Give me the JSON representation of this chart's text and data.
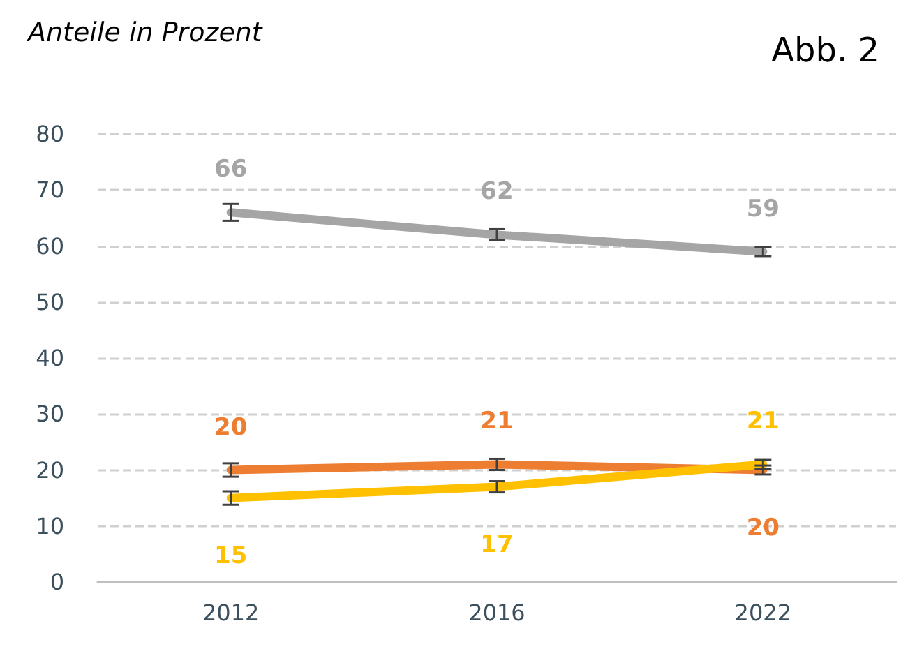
{
  "chart_data": {
    "type": "line",
    "ylabel": "Anteile in Prozent",
    "annotations": [
      "Abb. 2"
    ],
    "categories": [
      "2012",
      "2016",
      "2022"
    ],
    "series": [
      {
        "color": "#a5a5a5",
        "values": [
          66,
          62,
          59
        ],
        "errors": [
          1.5,
          1,
          0.8
        ]
      },
      {
        "color": "#ed7d31",
        "values": [
          20,
          21,
          20
        ],
        "errors": [
          1.2,
          1,
          0.8
        ]
      },
      {
        "color": "#ffc000",
        "values": [
          15,
          17,
          21
        ],
        "errors": [
          1.2,
          1,
          0.8
        ]
      }
    ],
    "ylim": [
      0,
      80
    ],
    "yticks": [
      0,
      10,
      20,
      30,
      40,
      50,
      60,
      70,
      80
    ],
    "grid": "y",
    "data_labels": true,
    "marker": "none",
    "line_style": "solid"
  }
}
